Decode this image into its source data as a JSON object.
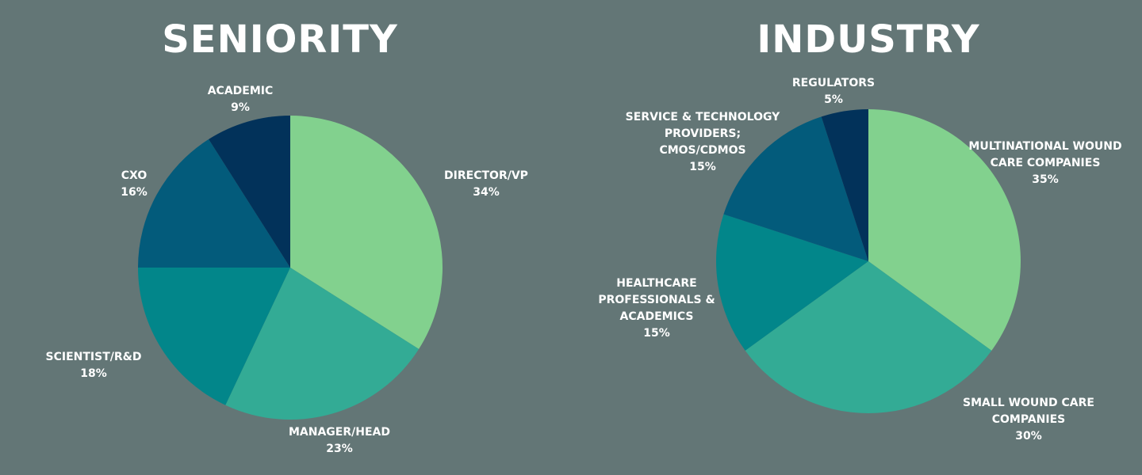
{
  "chart_data": [
    {
      "type": "pie",
      "title": "SENIORITY",
      "slices": [
        {
          "label": [
            "DIRECTOR/VP"
          ],
          "pct": "34%",
          "value": 34,
          "color": "#82d18e"
        },
        {
          "label": [
            "MANAGER/HEAD"
          ],
          "pct": "23%",
          "value": 23,
          "color": "#33ab95"
        },
        {
          "label": [
            "SCIENTIST/R&D"
          ],
          "pct": "18%",
          "value": 18,
          "color": "#02868a"
        },
        {
          "label": [
            "CXO"
          ],
          "pct": "16%",
          "value": 16,
          "color": "#035b7b"
        },
        {
          "label": [
            "ACADEMIC"
          ],
          "pct": "9%",
          "value": 9,
          "color": "#02325a"
        }
      ]
    },
    {
      "type": "pie",
      "title": "INDUSTRY",
      "slices": [
        {
          "label": [
            "MULTINATIONAL WOUND",
            "CARE COMPANIES"
          ],
          "pct": "35%",
          "value": 35,
          "color": "#82d18e"
        },
        {
          "label": [
            "SMALL WOUND CARE",
            "COMPANIES"
          ],
          "pct": "30%",
          "value": 30,
          "color": "#33ab95"
        },
        {
          "label": [
            "HEALTHCARE",
            "PROFESSIONALS &",
            "ACADEMICS"
          ],
          "pct": "15%",
          "value": 15,
          "color": "#02868a"
        },
        {
          "label": [
            "SERVICE & TECHNOLOGY",
            "PROVIDERS;",
            "CMOS/CDMOS"
          ],
          "pct": "15%",
          "value": 15,
          "color": "#035b7b"
        },
        {
          "label": [
            "REGULATORS"
          ],
          "pct": "5%",
          "value": 5,
          "color": "#02325a"
        }
      ]
    }
  ]
}
